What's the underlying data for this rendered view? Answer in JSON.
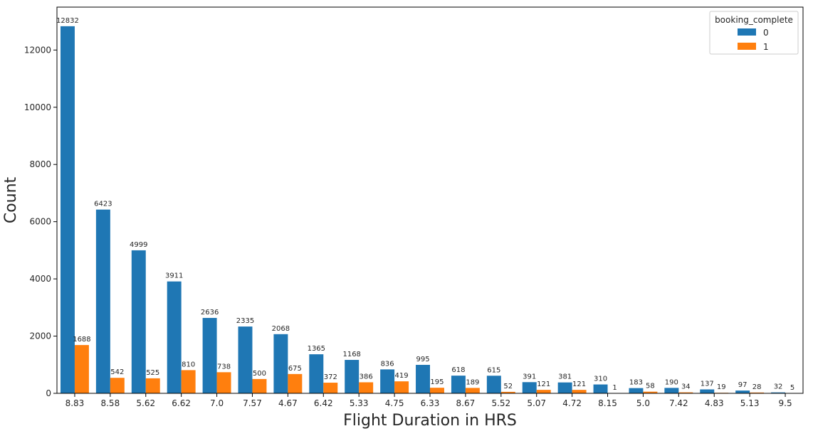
{
  "chart_data": {
    "type": "bar",
    "xlabel": "Flight Duration in HRS",
    "ylabel": "Count",
    "ylim": [
      0,
      13500
    ],
    "yticks": [
      0,
      2000,
      4000,
      6000,
      8000,
      10000,
      12000
    ],
    "categories": [
      "8.83",
      "8.58",
      "5.62",
      "6.62",
      "7.0",
      "7.57",
      "4.67",
      "6.42",
      "5.33",
      "4.75",
      "6.33",
      "8.67",
      "5.52",
      "5.07",
      "4.72",
      "8.15",
      "5.0",
      "7.42",
      "4.83",
      "5.13",
      "9.5"
    ],
    "series": [
      {
        "name": "0",
        "color": "#1f77b4",
        "values": [
          12832,
          6423,
          4999,
          3911,
          2636,
          2335,
          2068,
          1365,
          1168,
          836,
          995,
          618,
          615,
          391,
          381,
          310,
          183,
          190,
          137,
          97,
          32
        ]
      },
      {
        "name": "1",
        "color": "#ff7f0e",
        "values": [
          1688,
          542,
          525,
          810,
          738,
          500,
          675,
          372,
          386,
          419,
          195,
          189,
          52,
          121,
          121,
          1,
          58,
          34,
          19,
          28,
          5
        ]
      }
    ],
    "legend": {
      "title": "booking_complete",
      "placement": "top-right"
    },
    "grid": false
  }
}
